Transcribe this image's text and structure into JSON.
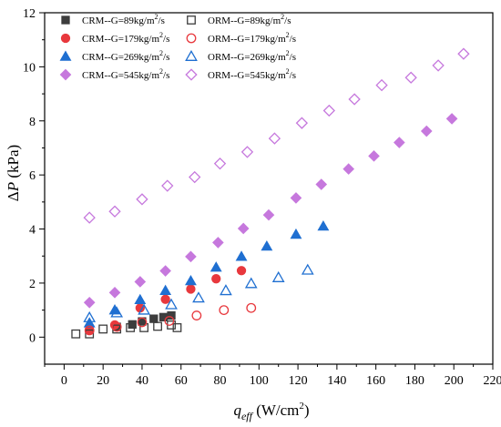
{
  "chart_data": {
    "type": "scatter",
    "xlabel": {
      "main": "q",
      "sub": "eff",
      "unit": " (W/cm",
      "sup": "2",
      "tail": ")"
    },
    "ylabel": {
      "delta": "Δ",
      "main": "P",
      "unit": " (kPa)"
    },
    "xlim": [
      -10,
      220
    ],
    "ylim": [
      -1,
      12
    ],
    "xticks": [
      0,
      20,
      40,
      60,
      80,
      100,
      120,
      140,
      160,
      180,
      200,
      220
    ],
    "yticks": [
      0,
      2,
      4,
      6,
      8,
      10,
      12
    ],
    "grid": false,
    "legend_position": "top-left",
    "series": [
      {
        "name": "CRM--G=89kg/m²/s",
        "prefix": "CRM--G=89kg/m",
        "sup": "2",
        "suffix": "/s",
        "marker": "square",
        "filled": true,
        "color": "#3d3d3d",
        "x": [
          27,
          35,
          40,
          46,
          51,
          55
        ],
        "y": [
          0.38,
          0.47,
          0.58,
          0.68,
          0.74,
          0.8
        ]
      },
      {
        "name": "CRM--G=179kg/m²/s",
        "prefix": "CRM--G=179kg/m",
        "sup": "2",
        "suffix": "/s",
        "marker": "circle",
        "filled": true,
        "color": "#e8383d",
        "x": [
          13,
          26,
          39,
          52,
          65,
          78,
          91
        ],
        "y": [
          0.28,
          0.45,
          1.08,
          1.4,
          1.78,
          2.16,
          2.46
        ]
      },
      {
        "name": "CRM--G=269kg/m²/s",
        "prefix": "CRM--G=269kg/m",
        "sup": "2",
        "suffix": "/s",
        "marker": "triangle",
        "filled": true,
        "color": "#1f6fd1",
        "x": [
          13,
          26,
          39,
          52,
          65,
          78,
          91,
          104,
          119,
          133
        ],
        "y": [
          0.52,
          1.0,
          1.38,
          1.72,
          2.08,
          2.58,
          2.98,
          3.36,
          3.8,
          4.1
        ]
      },
      {
        "name": "CRM--G=545kg/m²/s",
        "prefix": "CRM--G=545kg/m",
        "sup": "2",
        "suffix": "/s",
        "marker": "diamond",
        "filled": true,
        "color": "#c678dd",
        "x": [
          13,
          26,
          39,
          52,
          65,
          79,
          92,
          105,
          119,
          132,
          146,
          159,
          172,
          186,
          199
        ],
        "y": [
          1.28,
          1.65,
          2.05,
          2.45,
          2.98,
          3.5,
          4.02,
          4.52,
          5.15,
          5.65,
          6.22,
          6.7,
          7.2,
          7.62,
          8.08
        ]
      },
      {
        "name": "ORM--G=89kg/m²/s",
        "prefix": "ORM--G=89kg/m",
        "sup": "2",
        "suffix": "/s",
        "marker": "square",
        "filled": false,
        "color": "#3d3d3d",
        "x": [
          6,
          13,
          20,
          27,
          34,
          41,
          48,
          55,
          58
        ],
        "y": [
          0.12,
          0.12,
          0.3,
          0.3,
          0.35,
          0.35,
          0.4,
          0.45,
          0.35
        ]
      },
      {
        "name": "ORM--G=179kg/m²/s",
        "prefix": "ORM--G=179kg/m",
        "sup": "2",
        "suffix": "/s",
        "marker": "circle",
        "filled": false,
        "color": "#e8383d",
        "x": [
          13,
          27,
          40,
          54,
          68,
          82,
          96
        ],
        "y": [
          0.25,
          0.38,
          0.55,
          0.6,
          0.8,
          1.0,
          1.08
        ]
      },
      {
        "name": "ORM--G=269kg/m²/s",
        "prefix": "ORM--G=269kg/m",
        "sup": "2",
        "suffix": "/s",
        "marker": "triangle",
        "filled": false,
        "color": "#1f6fd1",
        "x": [
          13,
          27,
          41,
          55,
          69,
          83,
          96,
          110,
          125
        ],
        "y": [
          0.72,
          0.9,
          1.0,
          1.2,
          1.45,
          1.72,
          1.98,
          2.2,
          2.48
        ]
      },
      {
        "name": "ORM--G=545kg/m²/s",
        "prefix": "ORM--G=545kg/m",
        "sup": "2",
        "suffix": "/s",
        "marker": "diamond",
        "filled": false,
        "color": "#c678dd",
        "x": [
          13,
          26,
          40,
          53,
          67,
          80,
          94,
          108,
          122,
          136,
          149,
          163,
          178,
          192,
          205
        ],
        "y": [
          4.42,
          4.65,
          5.1,
          5.6,
          5.92,
          6.42,
          6.85,
          7.35,
          7.92,
          8.38,
          8.8,
          9.32,
          9.6,
          10.05,
          10.48
        ]
      }
    ]
  }
}
